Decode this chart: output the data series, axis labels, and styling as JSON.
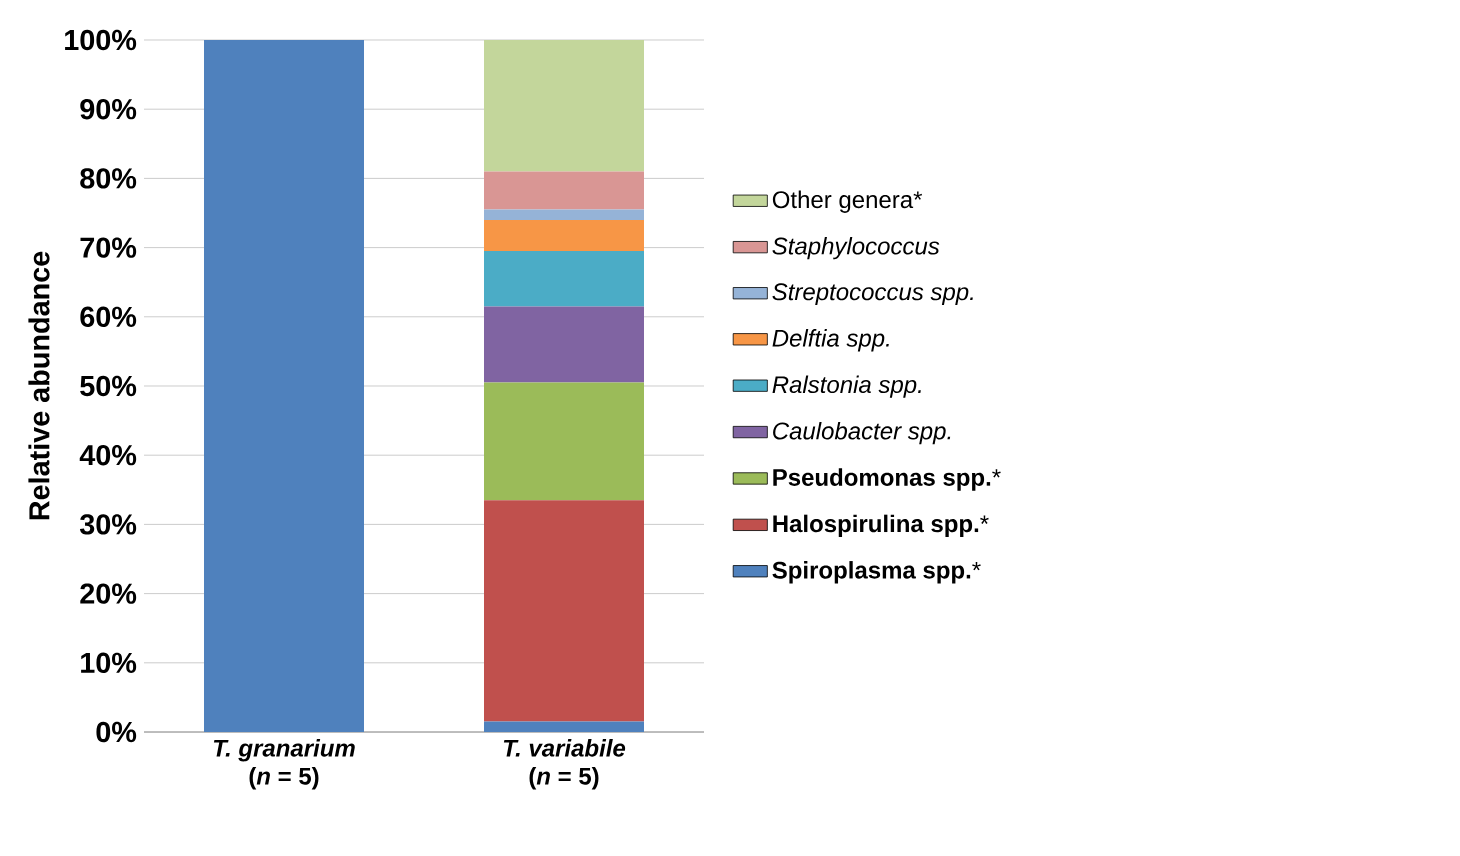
{
  "chart_data": {
    "type": "bar",
    "stacked": true,
    "ylabel": "Relative abundance",
    "categories": [
      "*T. granarium*\n(*n* = 5)",
      "*T. variabile*\n(*n* = 5)"
    ],
    "ylim": [
      0,
      100
    ],
    "yticks": [
      {
        "value": 0,
        "label": "0%"
      },
      {
        "value": 10,
        "label": "10%"
      },
      {
        "value": 20,
        "label": "20%"
      },
      {
        "value": 30,
        "label": "30%"
      },
      {
        "value": 40,
        "label": "40%"
      },
      {
        "value": 50,
        "label": "50%"
      },
      {
        "value": 60,
        "label": "60%"
      },
      {
        "value": 70,
        "label": "70%"
      },
      {
        "value": 80,
        "label": "80%"
      },
      {
        "value": 90,
        "label": "90%"
      },
      {
        "value": 100,
        "label": "100%"
      }
    ],
    "grid": "y",
    "legend": "right",
    "series": [
      {
        "name": "**Spiroplasma spp.***",
        "color": "#4f81bd",
        "values": [
          100,
          1.5
        ]
      },
      {
        "name": "**Halospirulina spp.***",
        "color": "#c0504d",
        "values": [
          0,
          32
        ]
      },
      {
        "name": "**Pseudomonas spp.***",
        "color": "#9bbb59",
        "values": [
          0,
          17
        ]
      },
      {
        "name": "*Caulobacter spp.*",
        "color": "#8064a2",
        "values": [
          0,
          11
        ]
      },
      {
        "name": "*Ralstonia spp.*",
        "color": "#4bacc6",
        "values": [
          0,
          8
        ]
      },
      {
        "name": "*Delftia spp.*",
        "color": "#f79646",
        "values": [
          0,
          4.5
        ]
      },
      {
        "name": "*Streptococcus spp.*",
        "color": "#95b3d7",
        "values": [
          0,
          1.5
        ]
      },
      {
        "name": "*Staphylococcus*",
        "color": "#d99694",
        "values": [
          0,
          5.5
        ]
      },
      {
        "name": "Other genera*",
        "color": "#c3d69b",
        "values": [
          0,
          19
        ]
      }
    ]
  }
}
